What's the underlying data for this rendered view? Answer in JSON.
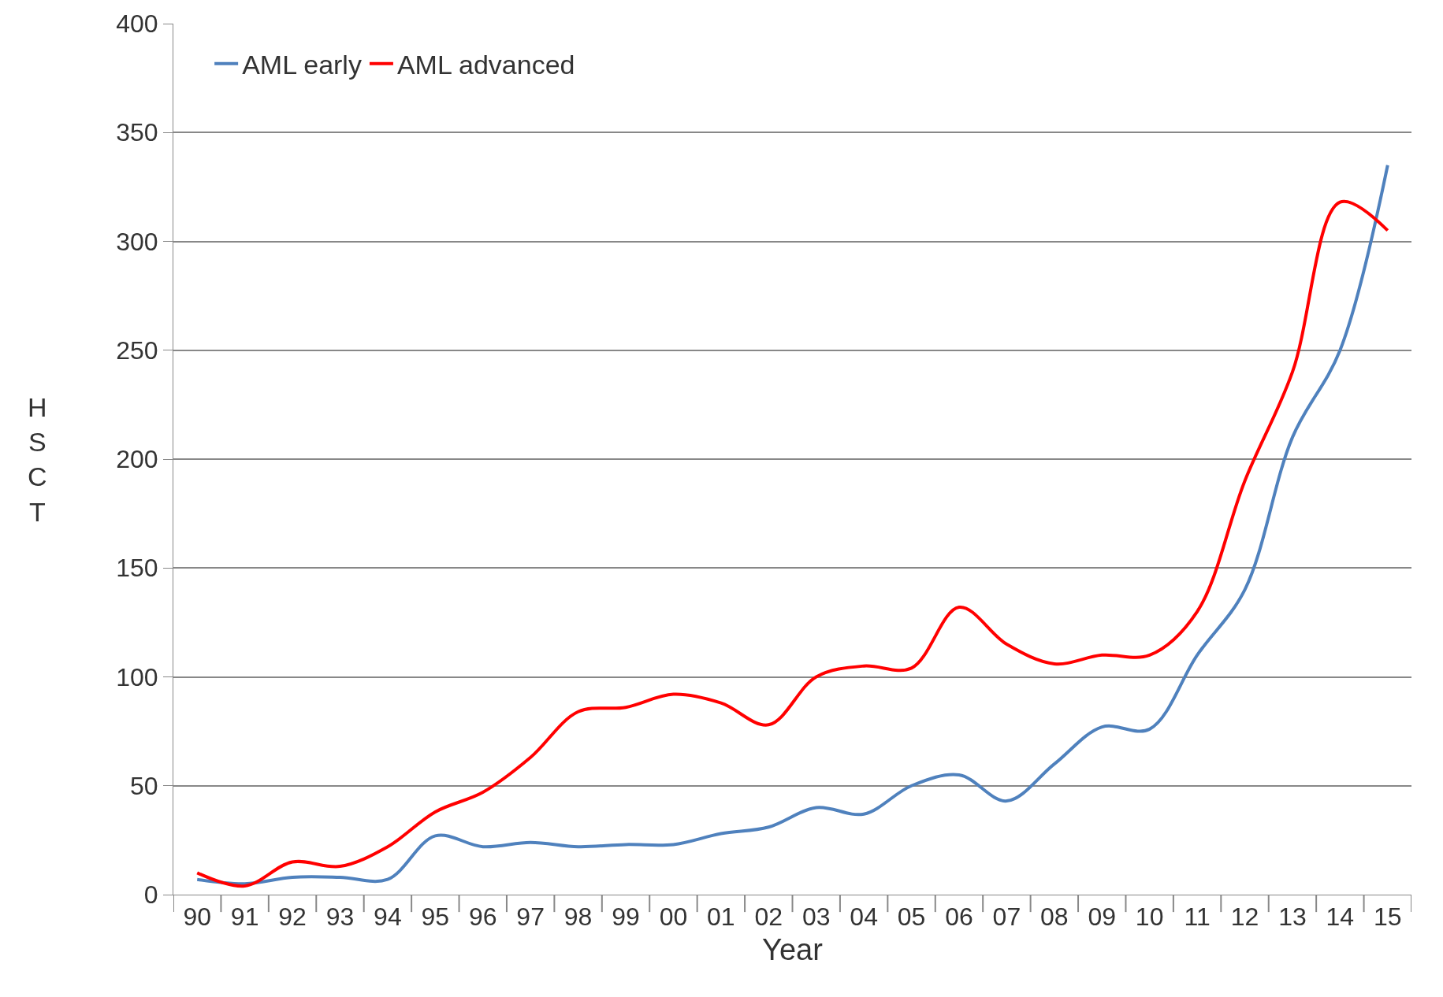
{
  "chart_data": {
    "type": "line",
    "xlabel": "Year",
    "ylabel": "HSCT",
    "categories": [
      "90",
      "91",
      "92",
      "93",
      "94",
      "95",
      "96",
      "97",
      "98",
      "99",
      "00",
      "01",
      "02",
      "03",
      "04",
      "05",
      "06",
      "07",
      "08",
      "09",
      "10",
      "11",
      "12",
      "13",
      "14",
      "15"
    ],
    "series": [
      {
        "name": "AML early",
        "color": "#4f81bd",
        "values": [
          7,
          5,
          8,
          8,
          7,
          27,
          22,
          24,
          22,
          23,
          23,
          28,
          31,
          40,
          37,
          50,
          55,
          43,
          60,
          77,
          76,
          110,
          140,
          210,
          250,
          335
        ]
      },
      {
        "name": "AML advanced",
        "color": "#ff0000",
        "values": [
          10,
          4,
          15,
          13,
          22,
          38,
          47,
          63,
          84,
          86,
          92,
          88,
          78,
          100,
          105,
          104,
          132,
          115,
          106,
          110,
          110,
          130,
          190,
          240,
          318,
          305
        ]
      }
    ],
    "ylim": [
      0,
      400
    ],
    "yticks": [
      0,
      50,
      100,
      150,
      200,
      250,
      300,
      350,
      400
    ],
    "grid": "y",
    "legend": "top left",
    "marker": "none",
    "line_style": "solid"
  }
}
